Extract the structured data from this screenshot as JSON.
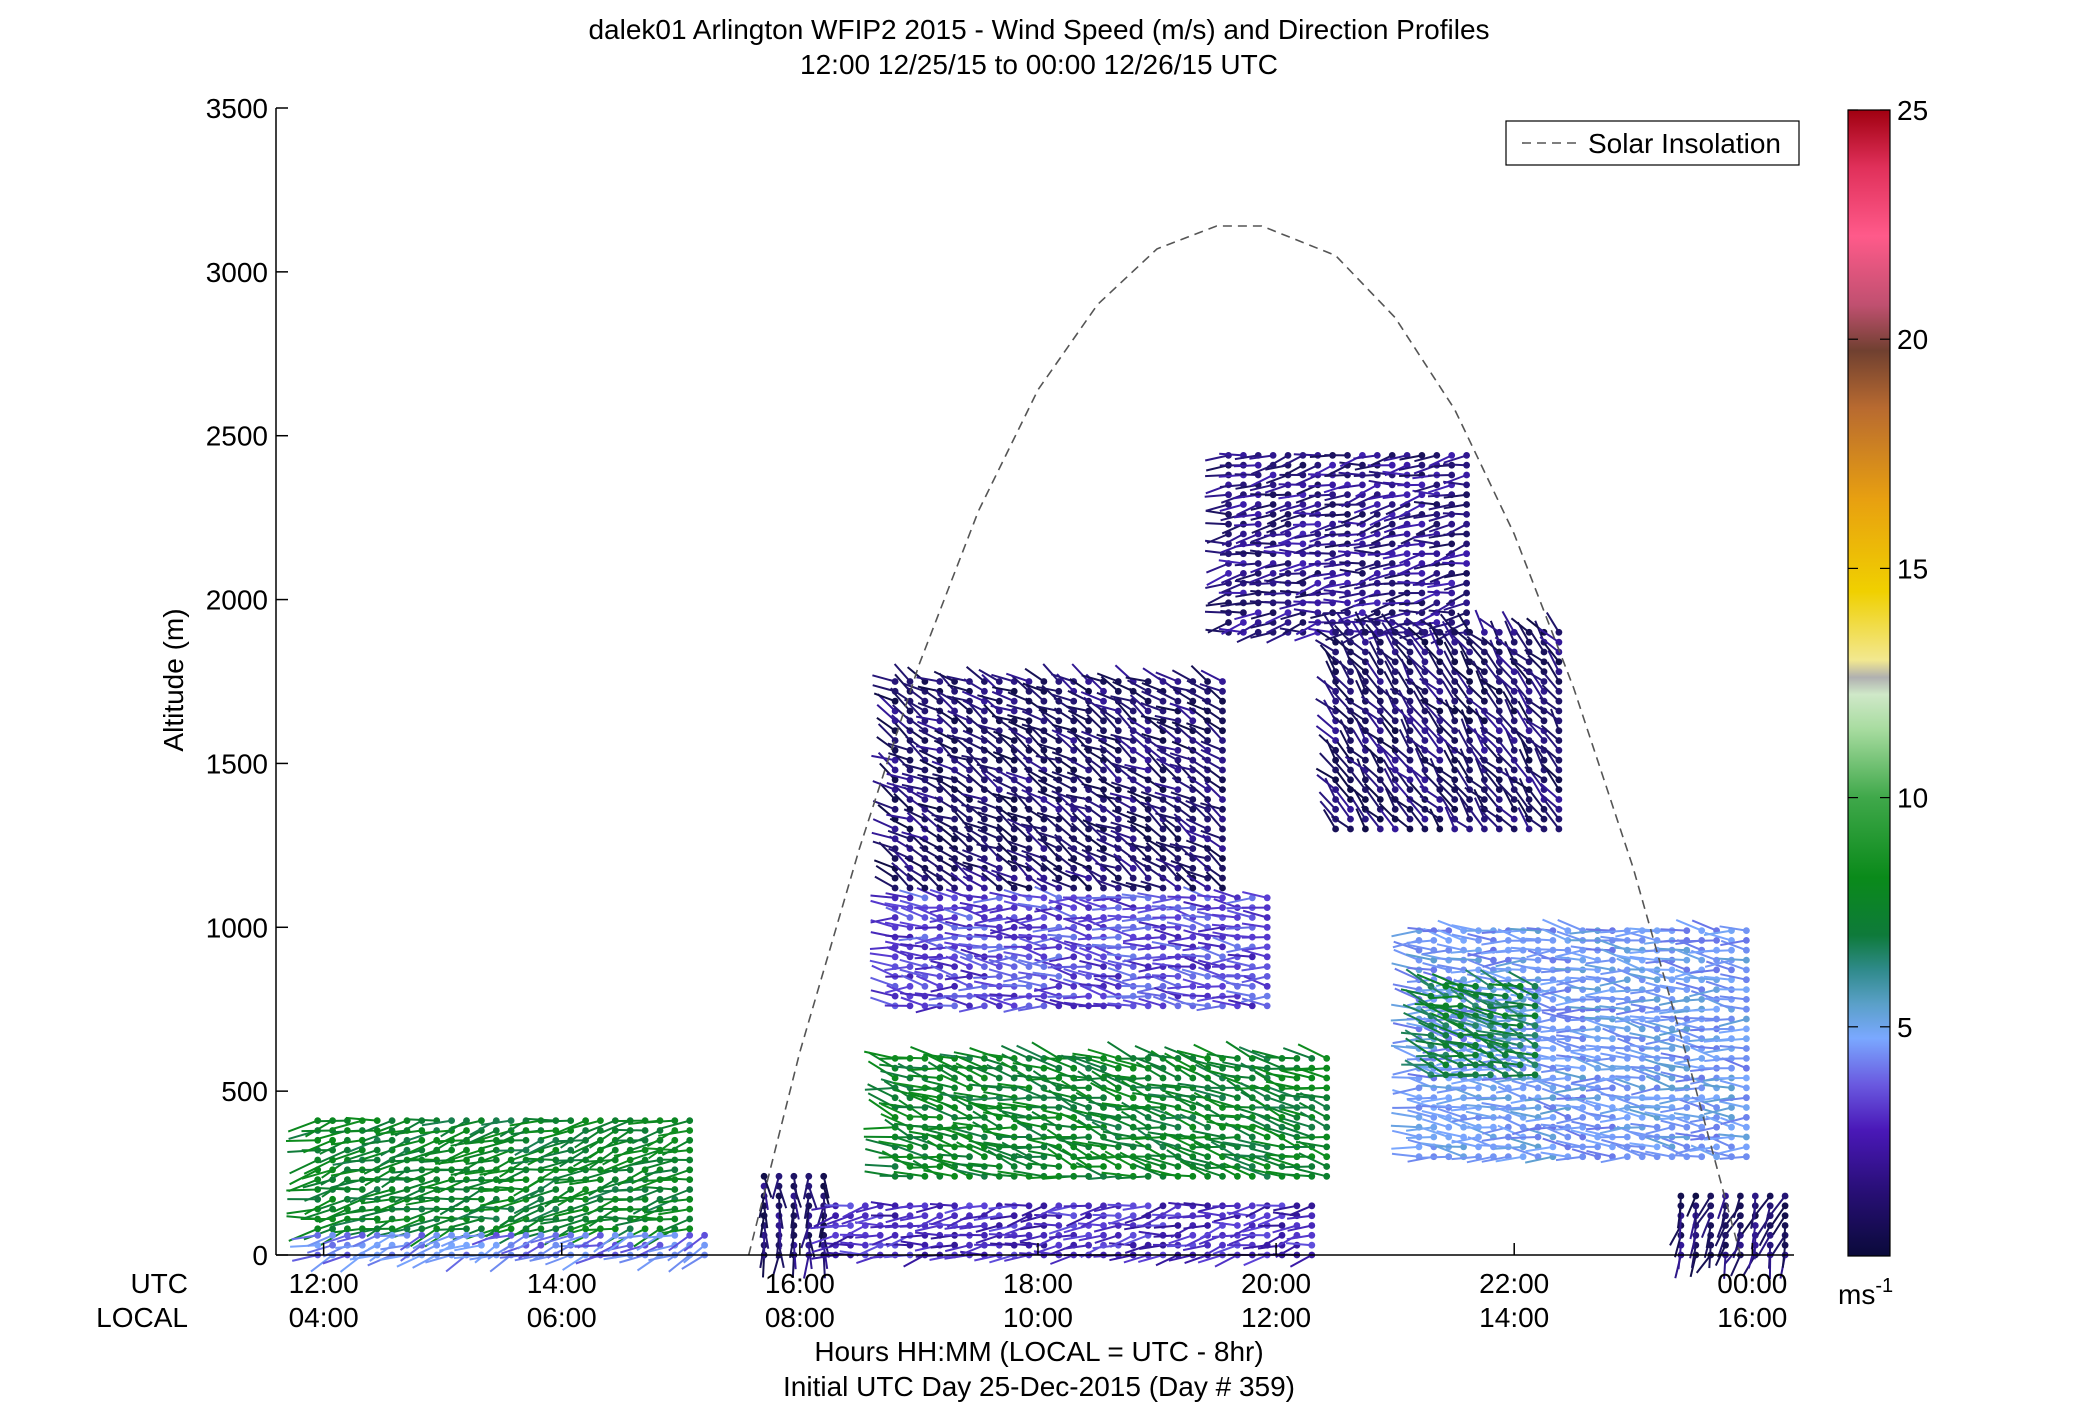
{
  "chart_data": {
    "type": "scatter",
    "title": [
      "dalek01 Arlington WFIP2 2015 - Wind Speed (m/s) and Direction Profiles",
      "12:00 12/25/15 to 00:00 12/26/15  UTC"
    ],
    "ylabel": "Altitude (m)",
    "xlabel": [
      "Hours HH:MM  (LOCAL = UTC - 8hr)",
      "Initial UTC Day 25-Dec-2015 (Day # 359)"
    ],
    "x_row_labels": [
      "UTC",
      "LOCAL"
    ],
    "xticks_utc": [
      "12:00",
      "14:00",
      "16:00",
      "18:00",
      "20:00",
      "22:00",
      "00:00"
    ],
    "xticks_local": [
      "04:00",
      "06:00",
      "08:00",
      "10:00",
      "12:00",
      "14:00",
      "16:00"
    ],
    "xlim_hours": [
      11.6,
      24.35
    ],
    "ylim": [
      0,
      3500
    ],
    "yticks": [
      0,
      500,
      1000,
      1500,
      2000,
      2500,
      3000,
      3500
    ],
    "grid": false,
    "legend": {
      "position": "top-right",
      "entries": [
        "Solar Insolation"
      ]
    },
    "colorbar": {
      "ticks": [
        5,
        10,
        15,
        20,
        25
      ],
      "unit": "ms-1",
      "min": 0,
      "max": 25
    },
    "solar_insolation": {
      "x": [
        15.57,
        16.0,
        16.5,
        17.0,
        17.5,
        18.0,
        18.5,
        19.0,
        19.5,
        19.88,
        20.5,
        21.0,
        21.5,
        22.0,
        22.5,
        23.0,
        23.5,
        23.9
      ],
      "y": [
        0,
        620,
        1240,
        1800,
        2270,
        2640,
        2900,
        3070,
        3140,
        3140,
        3050,
        2860,
        2580,
        2200,
        1730,
        1180,
        540,
        0
      ]
    },
    "wind_barb_regions": [
      {
        "x": [
          11.95,
          15.15
        ],
        "y": [
          80,
          420
        ],
        "speed_ms": 7.5,
        "dir_deg": 255
      },
      {
        "x": [
          11.95,
          15.3
        ],
        "y": [
          0,
          80
        ],
        "speed_ms": 4.0,
        "dir_deg": 250
      },
      {
        "x": [
          15.7,
          16.2
        ],
        "y": [
          0,
          250
        ],
        "speed_ms": 1.0,
        "dir_deg": 180
      },
      {
        "x": [
          16.3,
          20.4
        ],
        "y": [
          0,
          150
        ],
        "speed_ms": 2.5,
        "dir_deg": 260
      },
      {
        "x": [
          16.8,
          20.5
        ],
        "y": [
          240,
          600
        ],
        "speed_ms": 7.5,
        "dir_deg": 285
      },
      {
        "x": [
          16.8,
          20.0
        ],
        "y": [
          760,
          1100
        ],
        "speed_ms": 3.0,
        "dir_deg": 275
      },
      {
        "x": [
          16.8,
          19.6
        ],
        "y": [
          1120,
          1760
        ],
        "speed_ms": 1.0,
        "dir_deg": 300
      },
      {
        "x": [
          19.6,
          21.7
        ],
        "y": [
          1900,
          2440
        ],
        "speed_ms": 1.5,
        "dir_deg": 260
      },
      {
        "x": [
          20.5,
          22.4
        ],
        "y": [
          1300,
          1900
        ],
        "speed_ms": 1.0,
        "dir_deg": 320
      },
      {
        "x": [
          21.2,
          24.0
        ],
        "y": [
          300,
          1000
        ],
        "speed_ms": 4.5,
        "dir_deg": 275
      },
      {
        "x": [
          21.3,
          22.2
        ],
        "y": [
          550,
          820
        ],
        "speed_ms": 7.0,
        "dir_deg": 285
      },
      {
        "x": [
          23.4,
          24.3
        ],
        "y": [
          0,
          200
        ],
        "speed_ms": 1.0,
        "dir_deg": 200
      }
    ]
  }
}
